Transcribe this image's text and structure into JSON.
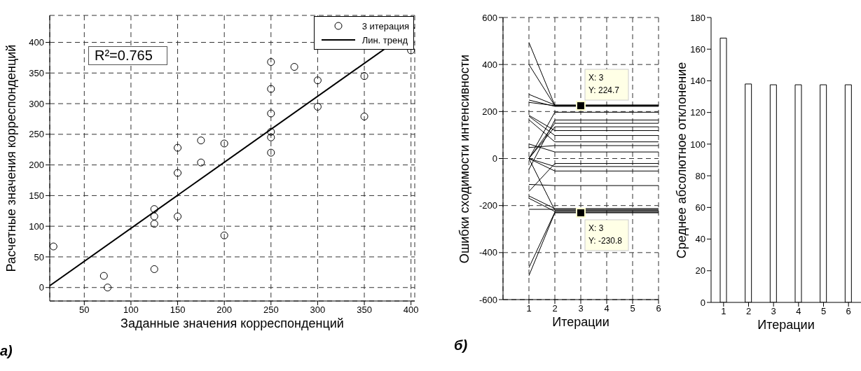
{
  "chart_data": [
    {
      "type": "scatter",
      "xlabel": "Заданные значения корреспонденций",
      "ylabel": "Расчетные значения корреспонденций",
      "xlim": [
        13,
        404
      ],
      "ylim": [
        -22,
        444
      ],
      "xticks": [
        50,
        100,
        150,
        200,
        250,
        300,
        350,
        400
      ],
      "yticks": [
        0,
        50,
        100,
        150,
        200,
        250,
        300,
        350,
        400
      ],
      "grid": true,
      "legend": "top right",
      "annotations": [
        "R²=0.765",
        "а)"
      ],
      "series": [
        {
          "type": "scatter",
          "name": "3 итерация",
          "color": "#000000",
          "marker": "circle",
          "x": [
            17,
            71,
            75,
            125,
            125,
            125,
            125,
            150,
            150,
            150,
            175,
            175,
            200,
            200,
            250,
            250,
            250,
            250,
            250,
            250,
            275,
            300,
            300,
            350,
            350,
            400
          ],
          "values": [
            67,
            19,
            0,
            30,
            128,
            116,
            104,
            228,
            187,
            116,
            240,
            204,
            235,
            85,
            368,
            324,
            284,
            254,
            245,
            220,
            360,
            338,
            295,
            345,
            279,
            387
          ]
        },
        {
          "type": "line",
          "name": "Лин. тренд",
          "color": "#000000",
          "marker": "none",
          "x": [
            13,
            404
          ],
          "values": [
            3,
            424
          ]
        }
      ]
    },
    {
      "type": "line",
      "xlabel": "Итерации",
      "ylabel": "Ошибки сходимости интенсивности",
      "x": [
        1,
        2,
        3,
        4,
        5,
        6
      ],
      "xlim": [
        0,
        6
      ],
      "ylim": [
        -600,
        600
      ],
      "xticks": [
        1,
        2,
        3,
        4,
        5,
        6
      ],
      "yticks": [
        -600,
        -400,
        -200,
        0,
        200,
        400,
        600
      ],
      "grid": true,
      "annotations": [
        {
          "text": "X: 3\nY: 224.7",
          "x": 3,
          "y": 224.7
        },
        {
          "text": "X: 3\nY: -230.8",
          "x": 3,
          "y": -230.8
        },
        "б)"
      ],
      "series": [
        {
          "color": "#000000",
          "values": [
            494,
            226,
            226,
            226,
            226,
            226
          ]
        },
        {
          "color": "#000000",
          "values": [
            400,
            224.7,
            224.7,
            224.7,
            224.7,
            224.7
          ]
        },
        {
          "color": "#000000",
          "values": [
            273,
            228,
            228,
            228,
            228,
            228
          ]
        },
        {
          "color": "#000000",
          "values": [
            249,
            222,
            222,
            222,
            222,
            222
          ]
        },
        {
          "color": "#000000",
          "values": [
            239,
            225,
            225,
            225,
            225,
            225
          ]
        },
        {
          "color": "#000000",
          "values": [
            184,
            119,
            119,
            119,
            119,
            119
          ]
        },
        {
          "color": "#000000",
          "values": [
            180,
            98,
            98,
            98,
            98,
            98
          ]
        },
        {
          "color": "#000000",
          "values": [
            165,
            71,
            71,
            71,
            71,
            71
          ]
        },
        {
          "color": "#000000",
          "values": [
            62,
            28,
            28,
            28,
            28,
            28
          ]
        },
        {
          "color": "#000000",
          "values": [
            47,
            55,
            55,
            55,
            55,
            55
          ]
        },
        {
          "color": "#000000",
          "values": [
            0,
            197,
            197,
            197,
            197,
            197
          ]
        },
        {
          "color": "#000000",
          "values": [
            0,
            150,
            150,
            150,
            150,
            150
          ]
        },
        {
          "color": "#000000",
          "values": [
            0,
            135,
            135,
            135,
            135,
            135
          ]
        },
        {
          "color": "#000000",
          "values": [
            0,
            -53,
            -53,
            -53,
            -53,
            -53
          ]
        },
        {
          "color": "#000000",
          "values": [
            0,
            -34,
            -34,
            -34,
            -34,
            -34
          ]
        },
        {
          "color": "#000000",
          "values": [
            0,
            -220,
            -220,
            -220,
            -220,
            -220
          ]
        },
        {
          "color": "#000000",
          "values": [
            -46,
            164,
            164,
            164,
            164,
            164
          ]
        },
        {
          "color": "#000000",
          "values": [
            -110,
            -115,
            -115,
            -115,
            -115,
            -115
          ]
        },
        {
          "color": "#000000",
          "values": [
            -140,
            -21,
            -21,
            -21,
            -21,
            -21
          ]
        },
        {
          "color": "#000000",
          "values": [
            -159,
            -213,
            -213,
            -213,
            -213,
            -213
          ]
        },
        {
          "color": "#000000",
          "values": [
            -169,
            -225,
            -225,
            -225,
            -225,
            -225
          ]
        },
        {
          "color": "#000000",
          "values": [
            -216,
            -216,
            -216,
            -216,
            -216,
            -216
          ]
        },
        {
          "color": "#000000",
          "values": [
            -464,
            -228,
            -228,
            -228,
            -228,
            -228
          ]
        },
        {
          "color": "#000000",
          "values": [
            -498,
            -230.8,
            -230.8,
            -230.8,
            -230.8,
            -230.8
          ]
        }
      ]
    },
    {
      "type": "bar",
      "xlabel": "Итерации",
      "ylabel": "Среднее абсолютное отклонение",
      "categories": [
        "1",
        "2",
        "3",
        "4",
        "5",
        "6"
      ],
      "values": [
        167,
        138,
        137.5,
        137.5,
        137.5,
        137.5
      ],
      "color": "#ffffff",
      "ylim": [
        0,
        180
      ],
      "yticks": [
        0,
        20,
        40,
        60,
        80,
        100,
        120,
        140,
        160,
        180
      ]
    }
  ]
}
